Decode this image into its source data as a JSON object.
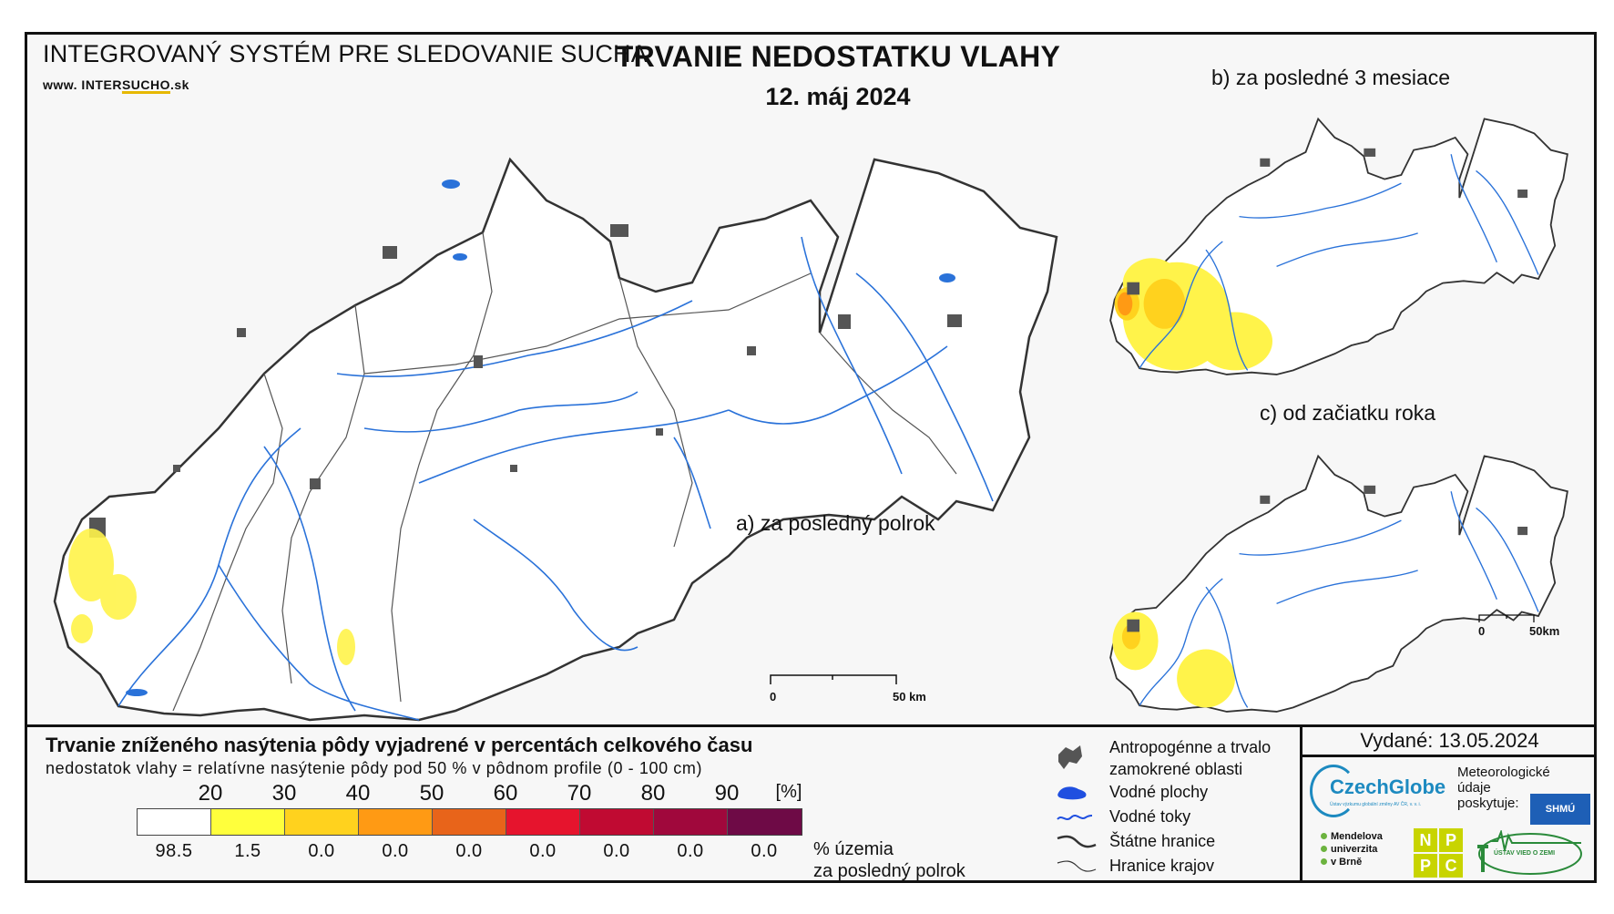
{
  "header": {
    "system_name": "INTEGROVANÝ SYSTÉM PRE SLEDOVANIE SUCHA",
    "url_prefix": "www. INTER",
    "url_mid": "SUCHO",
    "url_suffix": ".sk",
    "title": "TRVANIE NEDOSTATKU VLAHY",
    "date": "12. máj 2024"
  },
  "maps": {
    "a_label": "a) za posledný polrok",
    "b_label": "b) za posledné 3 mesiace",
    "c_label": "c) od začiatku roka",
    "scale_main": {
      "start": "0",
      "end": "50 km"
    },
    "scale_small": {
      "start": "0",
      "end": "50km"
    }
  },
  "legend": {
    "title": "Trvanie zníženého nasýtenia pôdy vyjadrené v percentách celkového času",
    "subtitle": "nedostatok vlahy = relatívne nasýtenie pôdy pod 50 % v pôdnom profile (0 - 100 cm)",
    "unit": "[%]",
    "thresholds": [
      "20",
      "30",
      "40",
      "50",
      "60",
      "70",
      "80",
      "90"
    ],
    "colors": [
      "#ffffff",
      "#ffff3c",
      "#ffd21e",
      "#ff9a14",
      "#e8641a",
      "#e6142d",
      "#c00a32",
      "#a0083c",
      "#6e0a46"
    ],
    "percentages": [
      "98.5",
      "1.5",
      "0.0",
      "0.0",
      "0.0",
      "0.0",
      "0.0",
      "0.0",
      "0.0"
    ],
    "share_label_1": "% územia",
    "share_label_2": "za posledný polrok"
  },
  "symbols": {
    "urban": "Antropogénne a trvalo",
    "urban_2": "zamokrené oblasti",
    "water_bodies": "Vodné plochy",
    "streams": "Vodné toky",
    "state_border": "Štátne hranice",
    "region_border": "Hranice krajov"
  },
  "issued": "Vydané: 13.05.2024",
  "logos": {
    "czechglobe": "CzechGlobe",
    "czechglobe_small": "Ústav výzkumu globální změny AV ČR, v. v. i.",
    "meteo_1": "Meteorologické",
    "meteo_2": "údaje",
    "meteo_3": "poskytuje:",
    "shmu": "SHMÚ",
    "mendel_1": "Mendelova",
    "mendel_2": "univerzita",
    "mendel_3": "v Brně",
    "nppc": [
      "N",
      "P",
      "P",
      "C"
    ],
    "uvz": "ÚSTAV VIED O ZEMI"
  }
}
